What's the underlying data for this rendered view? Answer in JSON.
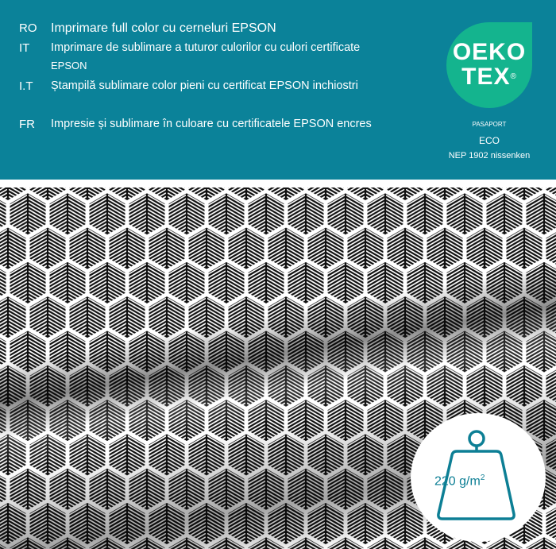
{
  "banner": {
    "rows": [
      {
        "code": "RO",
        "text": "Imprimare full color cu cerneluri EPSON"
      },
      {
        "code": "IT",
        "text": "Imprimare de sublimare a tuturor culorilor cu culori certificate",
        "cont": "EPSON"
      },
      {
        "code": "I.T",
        "text": "Ștampilă sublimare color pieni cu certificat EPSON inchiostri"
      },
      {
        "code": "FR",
        "text": "Impresie și sublimare în culoare cu certificatele EPSON encres"
      }
    ],
    "logo": {
      "line1": "OEKO",
      "line2": "TEX",
      "mark": "®"
    },
    "passport": {
      "label": "PASAPORT",
      "eco": "ECO",
      "number": "NEP 1902 nissenken"
    }
  },
  "weight": {
    "value": "220 g/m",
    "sup": "2",
    "icon": "weight-icon"
  },
  "colors": {
    "banner": "#0b8299",
    "logo": "#14b48e",
    "accent": "#0d7f95"
  }
}
